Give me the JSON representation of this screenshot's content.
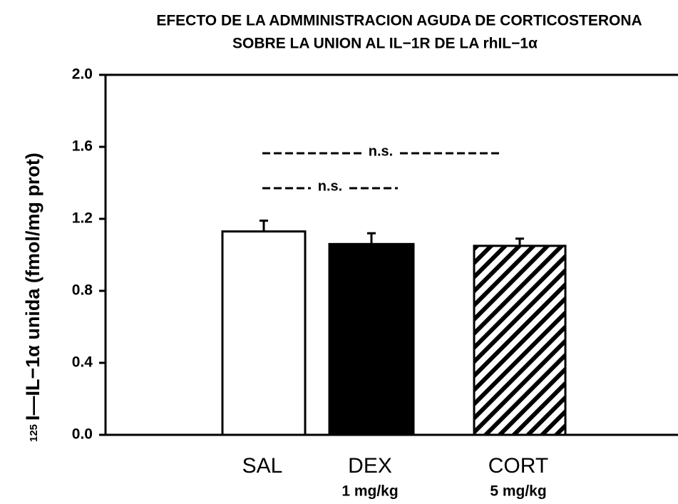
{
  "chart_data": {
    "type": "bar",
    "title": [
      "EFECTO DE LA ADMMINISTRACION AGUDA DE  CORTICOSTERONA",
      "SOBRE LA UNION AL IL−1R DE LA rhIL−1α"
    ],
    "ylabel_isotope": "125",
    "ylabel": "I—IL−1α unida (fmol/mg prot)",
    "categories": [
      "SAL",
      "DEX",
      "CORT"
    ],
    "sublabels": [
      null,
      "1 mg/kg",
      "5 mg/kg"
    ],
    "values": [
      1.13,
      1.06,
      1.05
    ],
    "errors": [
      0.06,
      0.06,
      0.04
    ],
    "fills": [
      "#ffffff",
      "#000000",
      "hatch"
    ],
    "annotations": [
      "n.s.",
      "n.s."
    ],
    "ylim": [
      0,
      2.0
    ],
    "yticks": [
      {
        "value": 0,
        "label": "0.0"
      },
      0.4,
      0.8,
      1.2,
      1.6,
      {
        "value": 2.0,
        "label": "2.0"
      }
    ]
  }
}
